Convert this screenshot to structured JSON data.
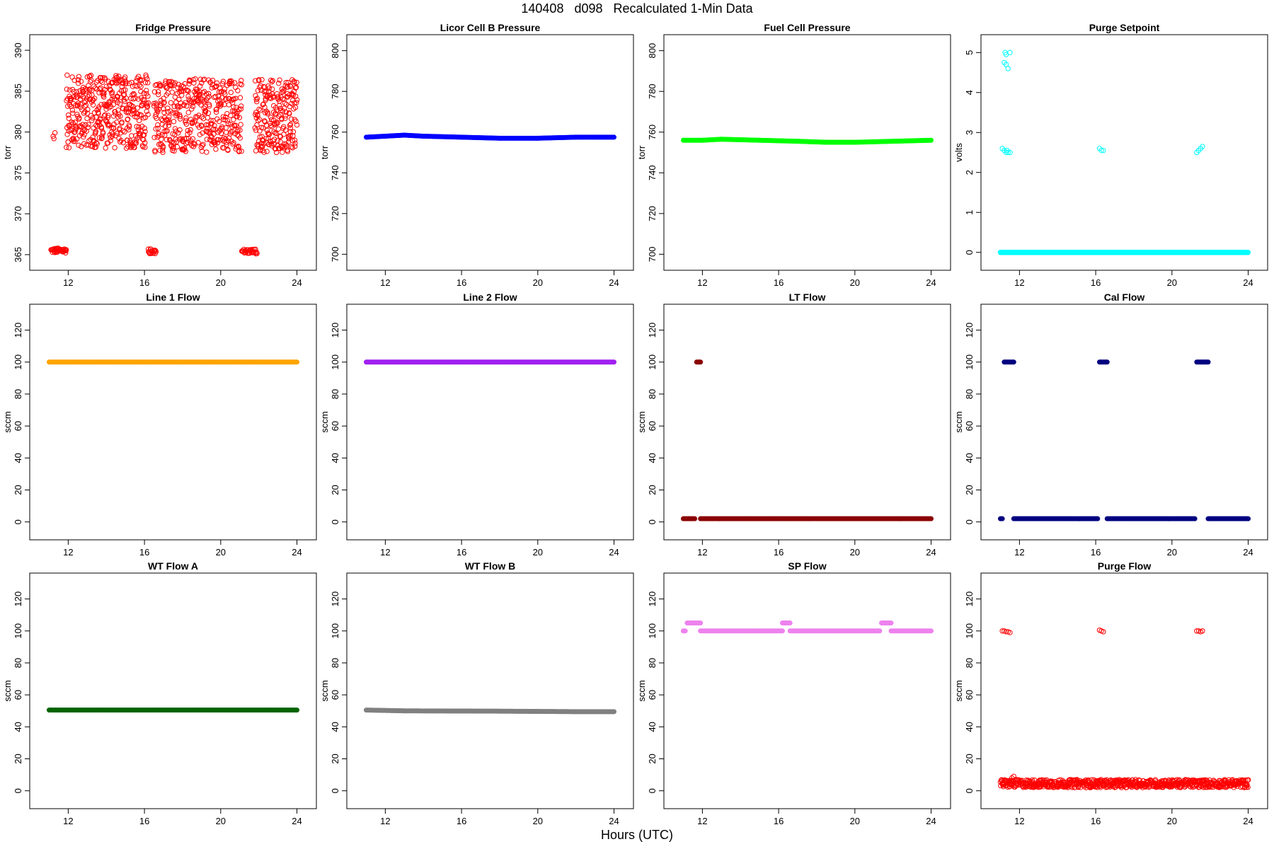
{
  "figure_title": "140408   d098   Recalculated 1-Min Data",
  "x_axis_title": "Hours (UTC)",
  "chart_data": [
    {
      "type": "scatter",
      "title": "Fridge Pressure",
      "ylabel": "torr",
      "xlim": [
        10.5,
        24.5
      ],
      "ylim": [
        364.3,
        390.7
      ],
      "xticks": [
        12,
        16,
        20,
        24
      ],
      "yticks": [
        365,
        370,
        375,
        380,
        385,
        390
      ],
      "color": "#ff0000",
      "marker": "open",
      "series": [
        {
          "x_range": [
            11.1,
            11.9
          ],
          "y": 365.5,
          "spread": 0.3,
          "density": 40
        },
        {
          "x_range": [
            11.2,
            11.3
          ],
          "y": 379.5,
          "spread": 0.5,
          "density": 3
        },
        {
          "x_range": [
            11.9,
            16.2
          ],
          "y": 382.5,
          "spread": 4.5,
          "density": 420
        },
        {
          "x_range": [
            16.2,
            16.6
          ],
          "y": 365.4,
          "spread": 0.3,
          "density": 20
        },
        {
          "x_range": [
            16.5,
            21.1
          ],
          "y": 382.0,
          "spread": 4.5,
          "density": 420
        },
        {
          "x_range": [
            21.1,
            21.9
          ],
          "y": 365.4,
          "spread": 0.3,
          "density": 30
        },
        {
          "x_range": [
            21.8,
            24.0
          ],
          "y": 382.0,
          "spread": 4.5,
          "density": 220
        }
      ]
    },
    {
      "type": "scatter",
      "title": "Licor Cell B Pressure",
      "ylabel": "torr",
      "xlim": [
        10.5,
        24.5
      ],
      "ylim": [
        697,
        803
      ],
      "xticks": [
        12,
        16,
        20,
        24
      ],
      "yticks": [
        700,
        720,
        740,
        760,
        780,
        800
      ],
      "color": "#0000ff",
      "marker": "filled",
      "series": [
        {
          "x": [
            11.0,
            12.0,
            13.0,
            14.0,
            16.0,
            18.0,
            20.0,
            22.0,
            24.0
          ],
          "y": [
            757.5,
            758.0,
            758.5,
            758.0,
            757.5,
            757.0,
            757.0,
            757.5,
            757.5
          ]
        }
      ]
    },
    {
      "type": "scatter",
      "title": "Fuel Cell Pressure",
      "ylabel": "torr",
      "xlim": [
        10.5,
        24.5
      ],
      "ylim": [
        697,
        803
      ],
      "xticks": [
        12,
        16,
        20,
        24
      ],
      "yticks": [
        700,
        720,
        740,
        760,
        780,
        800
      ],
      "color": "#00ff00",
      "marker": "filled",
      "series": [
        {
          "x": [
            11.0,
            12.0,
            13.0,
            15.0,
            17.0,
            18.5,
            20.0,
            22.0,
            24.0
          ],
          "y": [
            756.0,
            756.0,
            756.5,
            756.0,
            755.5,
            755.0,
            755.0,
            755.5,
            756.0
          ]
        }
      ]
    },
    {
      "type": "scatter",
      "title": "Purge Setpoint",
      "ylabel": "volts",
      "xlim": [
        10.5,
        24.5
      ],
      "ylim": [
        -0.2,
        5.2
      ],
      "xticks": [
        12,
        16,
        20,
        24
      ],
      "yticks": [
        0,
        1,
        2,
        3,
        4,
        5
      ],
      "color": "#00ffff",
      "marker": "open",
      "series": [
        {
          "x_range": [
            11.0,
            24.0
          ],
          "y": 0,
          "spread": 0,
          "density": 600
        },
        {
          "x": [
            11.1,
            11.2,
            11.3,
            11.35,
            11.4,
            11.5,
            11.25,
            11.3,
            11.4,
            11.5,
            11.2,
            11.3
          ],
          "y": [
            2.6,
            2.55,
            2.5,
            2.55,
            2.5,
            2.5,
            5.0,
            4.7,
            4.6,
            5.0,
            4.75,
            4.95
          ]
        },
        {
          "x": [
            16.2,
            16.3,
            16.4
          ],
          "y": [
            2.6,
            2.55,
            2.55
          ]
        },
        {
          "x": [
            21.3,
            21.4,
            21.5,
            21.6
          ],
          "y": [
            2.5,
            2.55,
            2.6,
            2.65
          ]
        }
      ]
    },
    {
      "type": "scatter",
      "title": "Line 1 Flow",
      "ylabel": "sccm",
      "xlim": [
        10.5,
        24.5
      ],
      "ylim": [
        -5,
        130
      ],
      "xticks": [
        12,
        16,
        20,
        24
      ],
      "yticks": [
        0,
        20,
        40,
        60,
        80,
        100,
        120
      ],
      "color": "#ffa500",
      "marker": "filled",
      "series": [
        {
          "x": [
            11.0,
            24.0
          ],
          "y": [
            100,
            100
          ]
        }
      ]
    },
    {
      "type": "scatter",
      "title": "Line 2 Flow",
      "ylabel": "sccm",
      "xlim": [
        10.5,
        24.5
      ],
      "ylim": [
        -5,
        130
      ],
      "xticks": [
        12,
        16,
        20,
        24
      ],
      "yticks": [
        0,
        20,
        40,
        60,
        80,
        100,
        120
      ],
      "color": "#a020f0",
      "marker": "filled",
      "series": [
        {
          "x": [
            11.0,
            24.0
          ],
          "y": [
            100,
            100
          ]
        }
      ]
    },
    {
      "type": "scatter",
      "title": "LT Flow",
      "ylabel": "sccm",
      "xlim": [
        10.5,
        24.5
      ],
      "ylim": [
        -5,
        130
      ],
      "xticks": [
        12,
        16,
        20,
        24
      ],
      "yticks": [
        0,
        20,
        40,
        60,
        80,
        100,
        120
      ],
      "color": "#8b0000",
      "marker": "filled",
      "series": [
        {
          "x": [
            11.0,
            11.6
          ],
          "y": [
            2,
            2
          ]
        },
        {
          "x": [
            11.7,
            11.9
          ],
          "y": [
            100,
            100
          ]
        },
        {
          "x": [
            11.9,
            24.0
          ],
          "y": [
            2,
            2
          ]
        }
      ]
    },
    {
      "type": "scatter",
      "title": "Cal Flow",
      "ylabel": "sccm",
      "xlim": [
        10.5,
        24.5
      ],
      "ylim": [
        -5,
        130
      ],
      "xticks": [
        12,
        16,
        20,
        24
      ],
      "yticks": [
        0,
        20,
        40,
        60,
        80,
        100,
        120
      ],
      "color": "#000080",
      "marker": "filled",
      "series": [
        {
          "x": [
            11.0,
            11.1
          ],
          "y": [
            2,
            2
          ]
        },
        {
          "x": [
            11.2,
            11.7
          ],
          "y": [
            100,
            100
          ]
        },
        {
          "x": [
            11.7,
            16.1
          ],
          "y": [
            2,
            2
          ]
        },
        {
          "x": [
            16.2,
            16.6
          ],
          "y": [
            100,
            100
          ]
        },
        {
          "x": [
            16.6,
            21.2
          ],
          "y": [
            2,
            2
          ]
        },
        {
          "x": [
            21.3,
            21.9
          ],
          "y": [
            100,
            100
          ]
        },
        {
          "x": [
            21.9,
            24.0
          ],
          "y": [
            2,
            2
          ]
        }
      ]
    },
    {
      "type": "scatter",
      "title": "WT Flow A",
      "ylabel": "sccm",
      "xlim": [
        10.5,
        24.5
      ],
      "ylim": [
        -5,
        130
      ],
      "xticks": [
        12,
        16,
        20,
        24
      ],
      "yticks": [
        0,
        20,
        40,
        60,
        80,
        100,
        120
      ],
      "color": "#006400",
      "marker": "filled",
      "series": [
        {
          "x": [
            11.0,
            24.0
          ],
          "y": [
            50.5,
            50.5
          ]
        }
      ]
    },
    {
      "type": "scatter",
      "title": "WT Flow B",
      "ylabel": "sccm",
      "xlim": [
        10.5,
        24.5
      ],
      "ylim": [
        -5,
        130
      ],
      "xticks": [
        12,
        16,
        20,
        24
      ],
      "yticks": [
        0,
        20,
        40,
        60,
        80,
        100,
        120
      ],
      "color": "#808080",
      "marker": "filled",
      "series": [
        {
          "x": [
            11.0,
            13.0,
            18.0,
            22.0,
            24.0
          ],
          "y": [
            50.5,
            50.0,
            49.8,
            49.5,
            49.5
          ]
        }
      ]
    },
    {
      "type": "scatter",
      "title": "SP Flow",
      "ylabel": "sccm",
      "xlim": [
        10.5,
        24.5
      ],
      "ylim": [
        -5,
        130
      ],
      "xticks": [
        12,
        16,
        20,
        24
      ],
      "yticks": [
        0,
        20,
        40,
        60,
        80,
        100,
        120
      ],
      "color": "#ee82ee",
      "marker": "filled",
      "series": [
        {
          "x": [
            11.0,
            11.1
          ],
          "y": [
            100,
            100
          ]
        },
        {
          "x": [
            11.2,
            11.9
          ],
          "y": [
            105,
            105
          ]
        },
        {
          "x": [
            11.9,
            16.2
          ],
          "y": [
            100,
            100
          ]
        },
        {
          "x": [
            16.2,
            16.6
          ],
          "y": [
            105,
            105
          ]
        },
        {
          "x": [
            16.6,
            21.3
          ],
          "y": [
            100,
            100
          ]
        },
        {
          "x": [
            21.4,
            21.9
          ],
          "y": [
            105,
            105
          ]
        },
        {
          "x": [
            21.9,
            24.0
          ],
          "y": [
            100,
            100
          ]
        }
      ]
    },
    {
      "type": "scatter",
      "title": "Purge Flow",
      "ylabel": "sccm",
      "xlim": [
        10.5,
        24.5
      ],
      "ylim": [
        -5,
        130
      ],
      "xticks": [
        12,
        16,
        20,
        24
      ],
      "yticks": [
        0,
        20,
        40,
        60,
        80,
        100,
        120
      ],
      "color": "#ff0000",
      "marker": "open",
      "series": [
        {
          "x_range": [
            11.0,
            24.0
          ],
          "y": 4.5,
          "spread": 2.5,
          "density": 700
        },
        {
          "x": [
            11.1,
            11.2,
            11.3,
            11.4,
            11.5,
            16.2,
            16.3,
            16.4,
            21.3,
            21.4,
            21.5,
            21.6
          ],
          "y": [
            100,
            100,
            99.5,
            99.5,
            99,
            100.5,
            100,
            99.5,
            100,
            100,
            99.5,
            100
          ]
        },
        {
          "x": [
            11.6,
            11.7,
            11.8
          ],
          "y": [
            8,
            9,
            7
          ]
        }
      ]
    }
  ]
}
